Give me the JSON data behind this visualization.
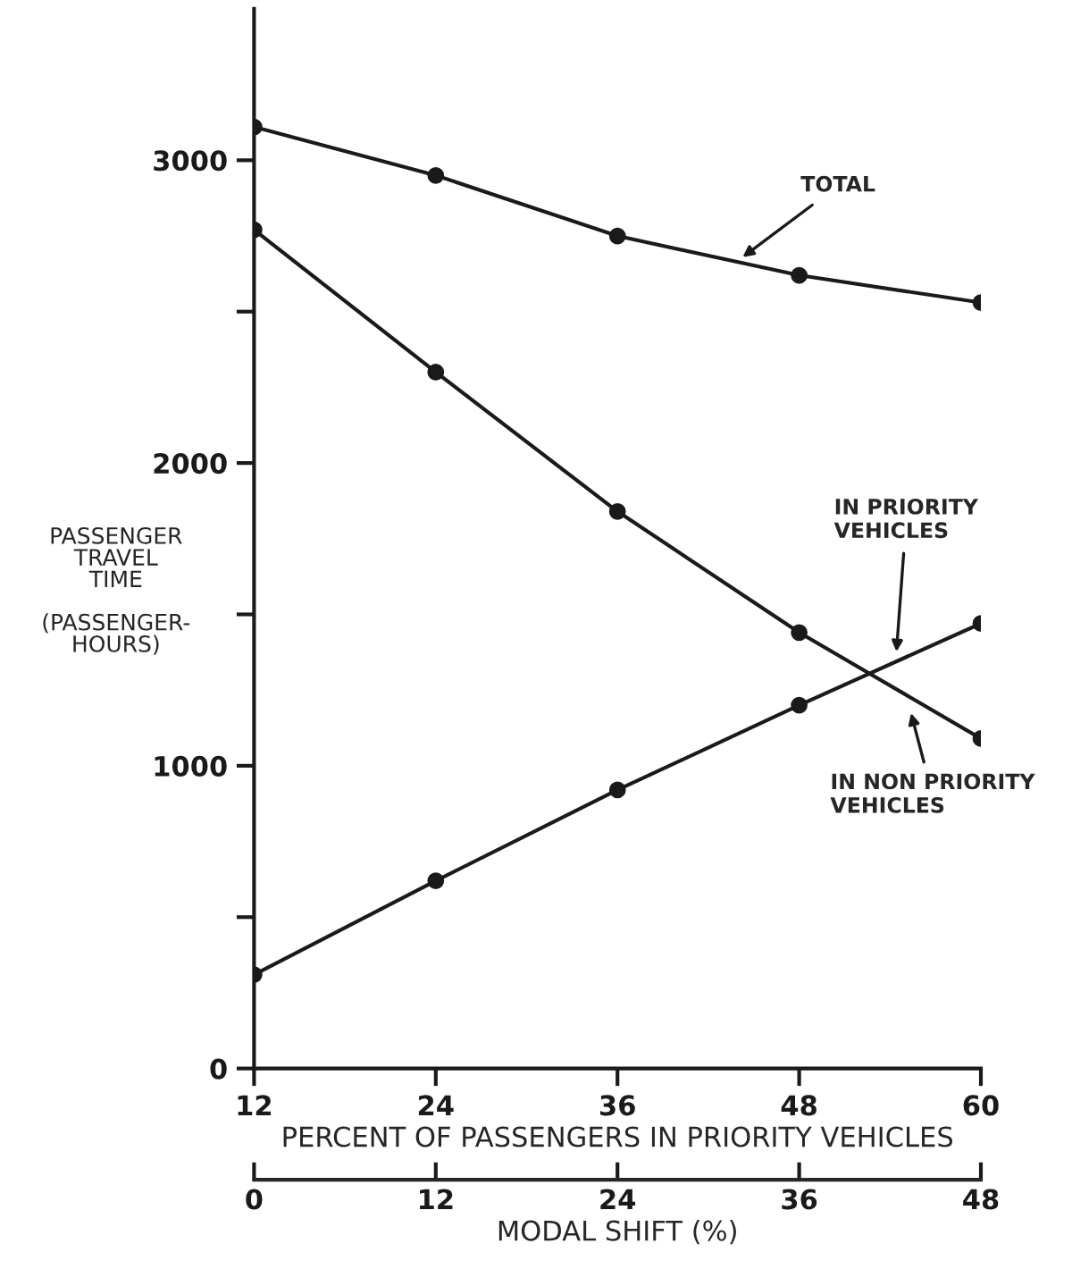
{
  "chart_data": {
    "type": "line",
    "xlabel": "PERCENT OF PASSENGERS IN PRIORITY VEHICLES",
    "x2label": "MODAL SHIFT (%)",
    "ylabel": "PASSENGER\nTRAVEL\nTIME\n\n(PASSENGER-\nHOURS)",
    "x": [
      12,
      24,
      36,
      48,
      60
    ],
    "series": [
      {
        "color": "#1a1a1a",
        "values": [
          3110,
          2950,
          2750,
          2620,
          2530
        ]
      },
      {
        "color": "#1a1a1a",
        "values": [
          2770,
          2300,
          1840,
          1440,
          1090
        ]
      },
      {
        "color": "#1a1a1a",
        "values": [
          310,
          620,
          920,
          1200,
          1470
        ]
      }
    ],
    "xlim": [
      12,
      60
    ],
    "xticks": [
      12,
      24,
      36,
      48,
      60
    ],
    "x2lim": [
      0,
      48
    ],
    "x2ticks": [
      0,
      12,
      24,
      36,
      48
    ],
    "ylim": [
      0,
      3500
    ],
    "yticks": [
      0,
      {
        "value": 500,
        "label": null
      },
      1000,
      {
        "value": 1500,
        "label": null
      },
      2000,
      {
        "value": 2500,
        "label": null
      },
      3000
    ],
    "annotations": [
      {
        "text": "TOTAL",
        "x": 44,
        "y": 2670
      },
      {
        "text": "IN PRIORITY\nVEHICLES",
        "x": 54.4,
        "y": 1360
      },
      {
        "text": "IN NON PRIORITY\nVEHICLES",
        "x": 55.3,
        "y": 1190
      }
    ],
    "marker": "circle",
    "line_style": "solid",
    "grid": false,
    "legend": false
  }
}
